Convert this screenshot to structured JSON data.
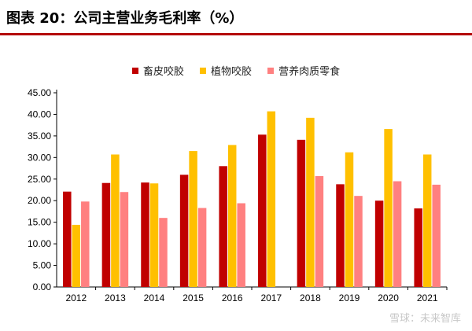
{
  "title": "图表 20：公司主营业务毛利率（%）",
  "watermark": "雪球：未来智库",
  "colors": {
    "series1": "#c00000",
    "series2": "#ffc000",
    "series3": "#ff8080",
    "title_rule": "#b30000"
  },
  "chart_data": {
    "type": "bar",
    "categories": [
      "2012",
      "2013",
      "2014",
      "2015",
      "2016",
      "2017",
      "2018",
      "2019",
      "2020",
      "2021"
    ],
    "series": [
      {
        "name": "畜皮咬胶",
        "values": [
          22.1,
          24.1,
          24.2,
          26.0,
          28.0,
          35.3,
          34.1,
          23.8,
          20.0,
          18.2
        ]
      },
      {
        "name": "植物咬胶",
        "values": [
          14.4,
          30.7,
          24.0,
          31.5,
          32.9,
          40.7,
          39.2,
          31.2,
          36.6,
          30.7
        ]
      },
      {
        "name": "营养肉质零食",
        "values": [
          19.8,
          22.0,
          16.0,
          18.3,
          19.4,
          null,
          25.7,
          21.1,
          24.5,
          23.7
        ]
      }
    ],
    "ylim": [
      0,
      45
    ],
    "yticks": [
      "0.00",
      "5.00",
      "10.00",
      "15.00",
      "20.00",
      "25.00",
      "30.00",
      "35.00",
      "40.00",
      "45.00"
    ],
    "legend_position": "top"
  }
}
